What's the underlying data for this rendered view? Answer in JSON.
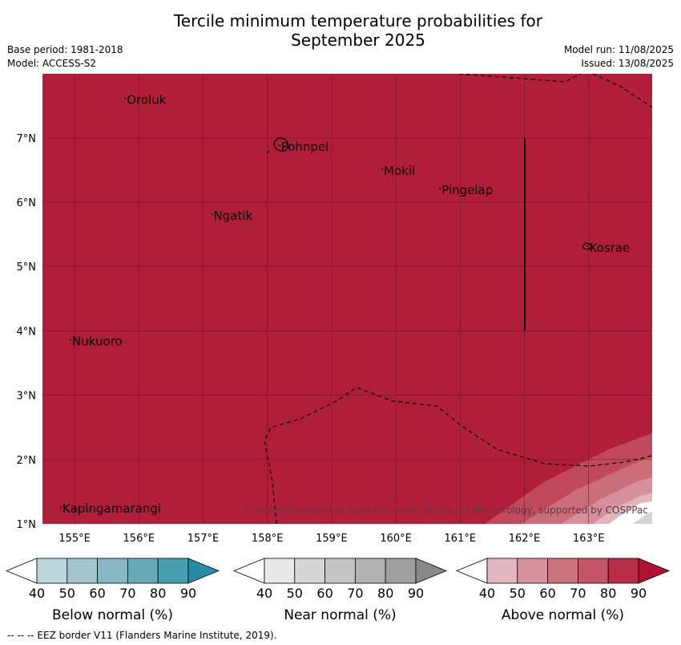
{
  "title": {
    "line1": "Tercile minimum temperature probabilities for",
    "line2": "September 2025"
  },
  "meta": {
    "base_period": "Base period: 1981-2018",
    "model": "Model: ACCESS-S2",
    "model_run": "Model run: 11/08/2025",
    "issued": "Issued: 13/08/2025"
  },
  "map": {
    "background_color": "#b11e3a",
    "grid_color": "#7a1226",
    "lon_ticks": [
      "155°E",
      "156°E",
      "157°E",
      "158°E",
      "159°E",
      "160°E",
      "161°E",
      "162°E",
      "163°E"
    ],
    "lat_ticks": [
      "7°N",
      "6°N",
      "5°N",
      "4°N",
      "3°N",
      "2°N",
      "1°N"
    ],
    "places": [
      {
        "name": "Oroluk",
        "lon": 155.8,
        "lat": 7.6
      },
      {
        "name": "Pohnpei",
        "lon": 158.2,
        "lat": 6.87
      },
      {
        "name": "Mokil",
        "lon": 159.8,
        "lat": 6.5
      },
      {
        "name": "Pingelap",
        "lon": 160.7,
        "lat": 6.2
      },
      {
        "name": "Ngatik",
        "lon": 157.15,
        "lat": 5.8
      },
      {
        "name": "Kosrae",
        "lon": 163.0,
        "lat": 5.3
      },
      {
        "name": "Nukuoro",
        "lon": 154.95,
        "lat": 3.85
      },
      {
        "name": "Kapingamarangi",
        "lon": 154.8,
        "lat": 1.25
      }
    ],
    "copyright": "© Commonwealth of Australia 2025, Bureau of Meteorology, supported by COSPPac"
  },
  "colorbars": [
    {
      "label": "Below normal (%)",
      "ticks": [
        "40",
        "50",
        "60",
        "70",
        "80",
        "90"
      ],
      "colors": [
        "#ffffff",
        "#bdd6dc",
        "#a3c6cd",
        "#88b7c1",
        "#6aaab7",
        "#46a0b0",
        "#2a8aa6"
      ]
    },
    {
      "label": "Near normal (%)",
      "ticks": [
        "40",
        "50",
        "60",
        "70",
        "80",
        "90"
      ],
      "colors": [
        "#ffffff",
        "#e8e8e8",
        "#d6d6d6",
        "#c4c4c4",
        "#b2b2b2",
        "#a0a0a0",
        "#888888"
      ]
    },
    {
      "label": "Above normal (%)",
      "ticks": [
        "40",
        "50",
        "60",
        "70",
        "80",
        "90"
      ],
      "colors": [
        "#ffffff",
        "#e2b6be",
        "#d6929d",
        "#cb727f",
        "#c25566",
        "#b82e47",
        "#b31035"
      ]
    }
  ],
  "footer": "--  --  -- EEZ border V11 (Flanders Marine Institute, 2019)."
}
